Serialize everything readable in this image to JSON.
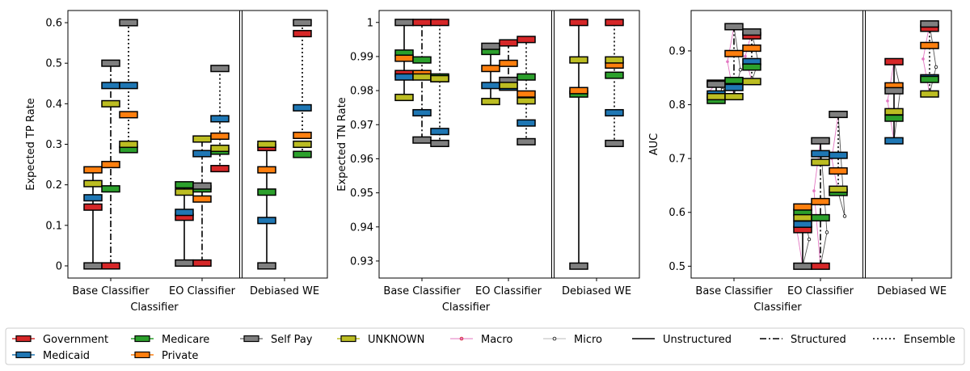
{
  "colors": {
    "Government": "#d62728",
    "Medicaid": "#1f77b4",
    "Medicare": "#2ca02c",
    "Private": "#ff7f0e",
    "Self Pay": "#7f7f7f",
    "UNKNOWN": "#bcbd22",
    "Macro": "#e377c2",
    "Micro": "#999999"
  },
  "chart_data": [
    {
      "type": "box-marker",
      "xlabel": "Classifier",
      "ylabel": "Expected TP Rate",
      "categories": [
        "Base Classifier",
        "EO Classifier",
        "Debiased WE"
      ],
      "yticks": [
        0.0,
        0.1,
        0.2,
        0.3,
        0.4,
        0.5,
        0.6
      ],
      "ylim": [
        -0.03,
        0.63
      ],
      "groups": [
        {
          "category": "Base Classifier",
          "method": "Unstructured",
          "range": [
            0.0,
            0.237
          ],
          "values": {
            "Government": 0.145,
            "Medicaid": 0.168,
            "Medicare": null,
            "Private": 0.237,
            "Self Pay": 0.0,
            "UNKNOWN": 0.203
          }
        },
        {
          "category": "Base Classifier",
          "method": "Structured",
          "range": [
            0.0,
            0.5
          ],
          "values": {
            "Government": 0.0,
            "Medicaid": 0.445,
            "Medicare": 0.19,
            "Private": 0.25,
            "Self Pay": 0.5,
            "UNKNOWN": 0.4
          }
        },
        {
          "category": "Base Classifier",
          "method": "Ensemble",
          "range": [
            0.287,
            0.6
          ],
          "values": {
            "Government": null,
            "Medicaid": 0.445,
            "Medicare": 0.287,
            "Private": 0.373,
            "Self Pay": 0.6,
            "UNKNOWN": 0.3
          }
        },
        {
          "category": "EO Classifier",
          "method": "Unstructured",
          "range": [
            0.007,
            0.2
          ],
          "values": {
            "Government": 0.12,
            "Medicaid": 0.132,
            "Medicare": 0.2,
            "Private": null,
            "Self Pay": 0.007,
            "UNKNOWN": 0.182
          }
        },
        {
          "category": "EO Classifier",
          "method": "Structured",
          "range": [
            0.007,
            0.313
          ],
          "values": {
            "Government": 0.007,
            "Medicaid": 0.277,
            "Medicare": 0.19,
            "Private": 0.165,
            "Self Pay": 0.197,
            "UNKNOWN": 0.313
          }
        },
        {
          "category": "EO Classifier",
          "method": "Ensemble",
          "range": [
            0.24,
            0.487
          ],
          "values": {
            "Government": 0.24,
            "Medicaid": 0.363,
            "Medicare": 0.283,
            "Private": 0.32,
            "Self Pay": 0.487,
            "UNKNOWN": 0.29
          }
        },
        {
          "category": "Debiased WE",
          "method": "Unstructured",
          "range": [
            0.0,
            0.3
          ],
          "values": {
            "Government": 0.292,
            "Medicaid": 0.112,
            "Medicare": 0.182,
            "Private": 0.237,
            "Self Pay": 0.0,
            "UNKNOWN": 0.3
          }
        },
        {
          "category": "Debiased WE",
          "method": "Ensemble",
          "range": [
            0.275,
            0.6
          ],
          "values": {
            "Government": 0.573,
            "Medicaid": 0.39,
            "Medicare": 0.275,
            "Private": 0.322,
            "Self Pay": 0.6,
            "UNKNOWN": 0.3
          }
        }
      ]
    },
    {
      "type": "box-marker",
      "xlabel": "Classifier",
      "ylabel": "Expected TN Rate",
      "categories": [
        "Base Classifier",
        "EO Classifier",
        "Debiased WE"
      ],
      "yticks": [
        0.93,
        0.94,
        0.95,
        0.96,
        0.97,
        0.98,
        0.99,
        1.0
      ],
      "ylim": [
        0.925,
        1.0035
      ],
      "groups": [
        {
          "category": "Base Classifier",
          "method": "Unstructured",
          "range": [
            0.978,
            1.0
          ],
          "values": {
            "Government": 0.985,
            "Medicaid": 0.984,
            "Medicare": 0.991,
            "Private": 0.9895,
            "Self Pay": 1.0,
            "UNKNOWN": 0.978
          }
        },
        {
          "category": "Base Classifier",
          "method": "Structured",
          "range": [
            0.9655,
            1.0
          ],
          "values": {
            "Government": 1.0,
            "Medicaid": 0.9735,
            "Medicare": 0.989,
            "Private": 0.985,
            "Self Pay": 0.9655,
            "UNKNOWN": 0.984
          }
        },
        {
          "category": "Base Classifier",
          "method": "Ensemble",
          "range": [
            0.9645,
            1.0
          ],
          "values": {
            "Government": 1.0,
            "Medicaid": 0.968,
            "Medicare": 0.984,
            "Private": 0.9835,
            "Self Pay": 0.9645,
            "UNKNOWN": 0.9835
          }
        },
        {
          "category": "EO Classifier",
          "method": "Unstructured",
          "range": [
            0.9768,
            0.993
          ],
          "values": {
            "Government": null,
            "Medicaid": 0.9815,
            "Medicare": 0.9915,
            "Private": 0.9865,
            "Self Pay": 0.993,
            "UNKNOWN": 0.9768
          }
        },
        {
          "category": "EO Classifier",
          "method": "Structured",
          "range": [
            0.981,
            0.994
          ],
          "values": {
            "Government": 0.994,
            "Medicaid": 0.981,
            "Medicare": null,
            "Private": 0.988,
            "Self Pay": 0.983,
            "UNKNOWN": 0.9815
          }
        },
        {
          "category": "EO Classifier",
          "method": "Ensemble",
          "range": [
            0.965,
            0.995
          ],
          "values": {
            "Government": 0.995,
            "Medicaid": 0.9705,
            "Medicare": 0.984,
            "Private": 0.979,
            "Self Pay": 0.965,
            "UNKNOWN": 0.977
          }
        },
        {
          "category": "Debiased WE",
          "method": "Unstructured",
          "range": [
            0.9285,
            1.0
          ],
          "values": {
            "Government": 1.0,
            "Medicaid": null,
            "Medicare": 0.979,
            "Private": 0.98,
            "Self Pay": 0.9285,
            "UNKNOWN": 0.989
          }
        },
        {
          "category": "Debiased WE",
          "method": "Ensemble",
          "range": [
            0.9645,
            1.0
          ],
          "values": {
            "Government": 1.0,
            "Medicaid": 0.9735,
            "Medicare": 0.9845,
            "Private": 0.9875,
            "Self Pay": 0.9645,
            "UNKNOWN": 0.989
          }
        }
      ]
    },
    {
      "type": "box-marker",
      "xlabel": "Classifier",
      "ylabel": "AUC",
      "categories": [
        "Base Classifier",
        "EO Classifier",
        "Debiased WE"
      ],
      "yticks": [
        0.5,
        0.6,
        0.7,
        0.8,
        0.9
      ],
      "ylim": [
        0.478,
        0.975
      ],
      "groups": [
        {
          "category": "Base Classifier",
          "method": "Unstructured",
          "range": [
            0.808,
            0.84
          ],
          "values": {
            "Government": null,
            "Medicaid": 0.82,
            "Medicare": 0.808,
            "Private": 0.84,
            "Self Pay": 0.838,
            "UNKNOWN": 0.815
          }
        },
        {
          "category": "Base Classifier",
          "method": "Structured",
          "range": [
            0.815,
            0.945
          ],
          "values": {
            "Government": null,
            "Medicaid": 0.832,
            "Medicare": 0.845,
            "Private": 0.895,
            "Self Pay": 0.945,
            "UNKNOWN": 0.815
          }
        },
        {
          "category": "Base Classifier",
          "method": "Ensemble",
          "range": [
            0.843,
            0.935
          ],
          "values": {
            "Government": 0.928,
            "Medicaid": 0.88,
            "Medicare": 0.87,
            "Private": 0.905,
            "Self Pay": 0.935,
            "UNKNOWN": 0.843
          }
        },
        {
          "category": "EO Classifier",
          "method": "Unstructured",
          "range": [
            0.5,
            0.61
          ],
          "values": {
            "Government": 0.568,
            "Medicaid": 0.578,
            "Medicare": 0.6,
            "Private": 0.61,
            "Self Pay": 0.5,
            "UNKNOWN": 0.59
          }
        },
        {
          "category": "EO Classifier",
          "method": "Structured",
          "range": [
            0.5,
            0.733
          ],
          "values": {
            "Government": 0.5,
            "Medicaid": 0.709,
            "Medicare": 0.59,
            "Private": 0.62,
            "Self Pay": 0.733,
            "UNKNOWN": 0.693
          }
        },
        {
          "category": "EO Classifier",
          "method": "Ensemble",
          "range": [
            0.637,
            0.782
          ],
          "values": {
            "Government": null,
            "Medicaid": 0.706,
            "Medicare": 0.637,
            "Private": 0.677,
            "Self Pay": 0.782,
            "UNKNOWN": 0.643
          }
        },
        {
          "category": "Debiased WE",
          "method": "Unstructured",
          "range": [
            0.733,
            0.88
          ],
          "values": {
            "Government": 0.88,
            "Medicaid": 0.733,
            "Medicare": 0.775,
            "Private": 0.835,
            "Self Pay": 0.826,
            "UNKNOWN": 0.787
          }
        },
        {
          "category": "Debiased WE",
          "method": "Ensemble",
          "range": [
            0.82,
            0.95
          ],
          "values": {
            "Government": 0.942,
            "Medicaid": 0.85,
            "Medicare": 0.847,
            "Private": 0.91,
            "Self Pay": 0.95,
            "UNKNOWN": 0.82
          }
        }
      ],
      "macro_micro": [
        {
          "category": "Base Classifier",
          "method": "Unstructured",
          "macro": 0.825,
          "micro": 0.828
        },
        {
          "category": "Base Classifier",
          "method": "Structured",
          "macro": 0.88,
          "micro": 0.865
        },
        {
          "category": "Base Classifier",
          "method": "Ensemble",
          "macro": 0.89,
          "micro": 0.88
        },
        {
          "category": "EO Classifier",
          "method": "Unstructured",
          "macro": 0.575,
          "micro": 0.55
        },
        {
          "category": "EO Classifier",
          "method": "Structured",
          "macro": 0.64,
          "micro": 0.563
        },
        {
          "category": "EO Classifier",
          "method": "Ensemble",
          "macro": 0.7,
          "micro": 0.593
        },
        {
          "category": "Debiased WE",
          "method": "Unstructured",
          "macro": 0.807,
          "micro": 0.83
        },
        {
          "category": "Debiased WE",
          "method": "Ensemble",
          "macro": 0.885,
          "micro": 0.87
        }
      ]
    }
  ],
  "legend": [
    {
      "label": "Government",
      "kind": "box",
      "color_key": "Government"
    },
    {
      "label": "Medicaid",
      "kind": "box",
      "color_key": "Medicaid"
    },
    {
      "label": "Medicare",
      "kind": "box",
      "color_key": "Medicare"
    },
    {
      "label": "Private",
      "kind": "box",
      "color_key": "Private"
    },
    {
      "label": "Self Pay",
      "kind": "box",
      "color_key": "Self Pay"
    },
    {
      "label": "UNKNOWN",
      "kind": "box",
      "color_key": "UNKNOWN"
    },
    {
      "label": "Macro",
      "kind": "dotline",
      "color_key": "Macro"
    },
    {
      "label": "Micro",
      "kind": "dotline",
      "color_key": "Micro"
    },
    {
      "label": "Unstructured",
      "kind": "solid"
    },
    {
      "label": "Structured",
      "kind": "dashdot"
    },
    {
      "label": "Ensemble",
      "kind": "dotted"
    }
  ]
}
